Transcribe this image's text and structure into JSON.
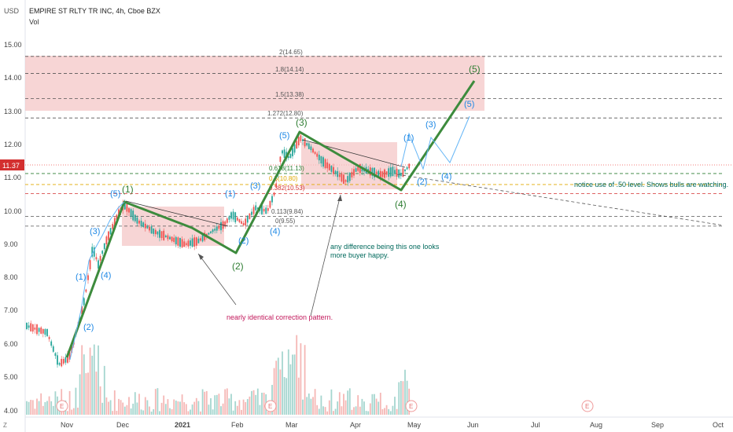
{
  "header": {
    "currency": "USD",
    "title": "EMPIRE ST RLTY TR INC, 4h, Cboe BZX",
    "volume_label": "Vol"
  },
  "price_axis": {
    "ticks": [
      "15.00",
      "14.00",
      "13.00",
      "12.00",
      "11.00",
      "10.00",
      "9.00",
      "8.00",
      "7.00",
      "6.00",
      "5.00",
      "4.00"
    ],
    "last_price": "11.37",
    "last_price_color": "#d32f2f"
  },
  "time_axis": {
    "ticks": [
      "Nov",
      "Dec",
      "2021",
      "Feb",
      "Mar",
      "Apr",
      "May",
      "Jun",
      "Jul",
      "Aug",
      "Sep",
      "Oct"
    ]
  },
  "fib_levels": [
    {
      "label": "2(14.65)",
      "value": 14.65
    },
    {
      "label": "1.8(14.14)",
      "value": 14.14
    },
    {
      "label": "1.5(13.38)",
      "value": 13.38
    },
    {
      "label": "1.272(12.80)",
      "value": 12.8
    },
    {
      "label": "0.618(11.13)",
      "value": 11.13
    },
    {
      "label": "0.5(10.80)",
      "value": 10.8
    },
    {
      "label": "0.382(10.53)",
      "value": 10.53
    },
    {
      "label": "0.113(9.84)",
      "value": 9.84
    },
    {
      "label": "0(9.55)",
      "value": 9.55
    }
  ],
  "wave_labels": {
    "major": [
      "(1)",
      "(2)",
      "(3)",
      "(4)",
      "(5)"
    ],
    "minor": [
      "(1)",
      "(2)",
      "(3)",
      "(4)",
      "(5)"
    ]
  },
  "annotations": {
    "correction": "nearly identical correction pattern.",
    "buyer": "any difference being this one looks more buyer happy.",
    "notice": "notice use of .50 level. Shows bulls are watching."
  },
  "event_marker": "E",
  "corner_label": "Z",
  "colors": {
    "candle_up": "#26a69a",
    "candle_down": "#ef5350",
    "wave_major": "#2e7d32",
    "wave_minor": "#1e88e5",
    "zone": "#f4c7c7",
    "annotation_red": "#c2185b",
    "annotation_teal": "#00695c"
  }
}
